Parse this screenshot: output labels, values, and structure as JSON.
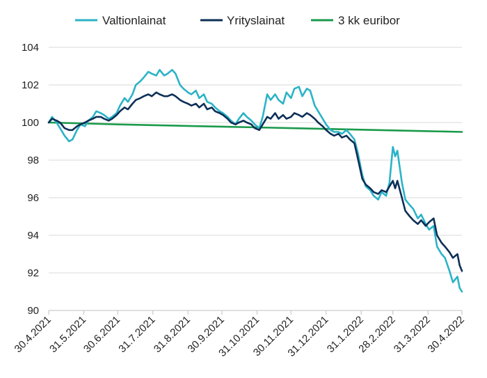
{
  "chart_data": {
    "type": "line",
    "title": "",
    "xlabel": "",
    "ylabel": "",
    "ylim": [
      90,
      104
    ],
    "yticks": [
      "90",
      "92",
      "94",
      "96",
      "98",
      "100",
      "102",
      "104"
    ],
    "xticks": [
      "30.4.2021",
      "31.5.2021",
      "30.6.2021",
      "31.7.2021",
      "31.8.2021",
      "30.9.2021",
      "31.10.2021",
      "30.11.2021",
      "31.12.2021",
      "31.1.2022",
      "28.2.2022",
      "31.3.2022",
      "30.4.2022"
    ],
    "grid": "horizontal",
    "legend_position": "top",
    "series": [
      {
        "name": "Valtionlainat",
        "color": "#2bb3c7",
        "points": [
          [
            "30.4.2021",
            100.0
          ],
          [
            "3.5.2021",
            100.3
          ],
          [
            "7.5.2021",
            100.0
          ],
          [
            "10.5.2021",
            99.7
          ],
          [
            "14.5.2021",
            99.3
          ],
          [
            "18.5.2021",
            99.0
          ],
          [
            "21.5.2021",
            99.1
          ],
          [
            "25.5.2021",
            99.6
          ],
          [
            "28.5.2021",
            99.9
          ],
          [
            "1.6.2021",
            99.8
          ],
          [
            "4.6.2021",
            100.1
          ],
          [
            "8.6.2021",
            100.3
          ],
          [
            "11.6.2021",
            100.6
          ],
          [
            "15.6.2021",
            100.5
          ],
          [
            "18.6.2021",
            100.4
          ],
          [
            "22.6.2021",
            100.2
          ],
          [
            "25.6.2021",
            100.3
          ],
          [
            "29.6.2021",
            100.5
          ],
          [
            "2.7.2021",
            100.9
          ],
          [
            "6.7.2021",
            101.3
          ],
          [
            "9.7.2021",
            101.1
          ],
          [
            "13.7.2021",
            101.5
          ],
          [
            "16.7.2021",
            102.0
          ],
          [
            "20.7.2021",
            102.2
          ],
          [
            "23.7.2021",
            102.4
          ],
          [
            "27.7.2021",
            102.7
          ],
          [
            "30.7.2021",
            102.6
          ],
          [
            "3.8.2021",
            102.5
          ],
          [
            "6.8.2021",
            102.8
          ],
          [
            "10.8.2021",
            102.5
          ],
          [
            "13.8.2021",
            102.6
          ],
          [
            "17.8.2021",
            102.8
          ],
          [
            "20.8.2021",
            102.6
          ],
          [
            "24.8.2021",
            102.0
          ],
          [
            "27.8.2021",
            101.8
          ],
          [
            "31.8.2021",
            101.6
          ],
          [
            "3.9.2021",
            101.5
          ],
          [
            "7.9.2021",
            101.7
          ],
          [
            "10.9.2021",
            101.3
          ],
          [
            "14.9.2021",
            101.5
          ],
          [
            "17.9.2021",
            101.1
          ],
          [
            "21.9.2021",
            101.0
          ],
          [
            "24.9.2021",
            100.8
          ],
          [
            "28.9.2021",
            100.6
          ],
          [
            "1.10.2021",
            100.5
          ],
          [
            "5.10.2021",
            100.3
          ],
          [
            "8.10.2021",
            100.1
          ],
          [
            "12.10.2021",
            99.9
          ],
          [
            "15.10.2021",
            100.2
          ],
          [
            "19.10.2021",
            100.5
          ],
          [
            "22.10.2021",
            100.3
          ],
          [
            "26.10.2021",
            100.1
          ],
          [
            "29.10.2021",
            99.9
          ],
          [
            "2.11.2021",
            99.7
          ],
          [
            "5.11.2021",
            100.3
          ],
          [
            "9.11.2021",
            101.5
          ],
          [
            "12.11.2021",
            101.2
          ],
          [
            "16.11.2021",
            101.5
          ],
          [
            "19.11.2021",
            101.2
          ],
          [
            "23.11.2021",
            101.0
          ],
          [
            "26.11.2021",
            101.6
          ],
          [
            "30.11.2021",
            101.3
          ],
          [
            "3.12.2021",
            101.8
          ],
          [
            "7.12.2021",
            101.9
          ],
          [
            "10.12.2021",
            101.4
          ],
          [
            "14.12.2021",
            101.8
          ],
          [
            "17.12.2021",
            101.7
          ],
          [
            "21.12.2021",
            100.9
          ],
          [
            "24.12.2021",
            100.6
          ],
          [
            "28.12.2021",
            100.2
          ],
          [
            "31.12.2021",
            99.9
          ],
          [
            "4.1.2022",
            99.6
          ],
          [
            "7.1.2022",
            99.5
          ],
          [
            "11.1.2022",
            99.5
          ],
          [
            "14.1.2022",
            99.4
          ],
          [
            "18.1.2022",
            99.6
          ],
          [
            "21.1.2022",
            99.4
          ],
          [
            "25.1.2022",
            99.1
          ],
          [
            "28.1.2022",
            98.4
          ],
          [
            "1.2.2022",
            97.2
          ],
          [
            "4.2.2022",
            96.6
          ],
          [
            "8.2.2022",
            96.4
          ],
          [
            "11.2.2022",
            96.1
          ],
          [
            "15.2.2022",
            95.9
          ],
          [
            "18.2.2022",
            96.3
          ],
          [
            "22.2.2022",
            96.1
          ],
          [
            "25.2.2022",
            96.8
          ],
          [
            "28.2.2022",
            98.7
          ],
          [
            "2.3.2022",
            98.2
          ],
          [
            "4.3.2022",
            98.5
          ],
          [
            "8.3.2022",
            96.8
          ],
          [
            "11.3.2022",
            95.9
          ],
          [
            "15.3.2022",
            95.6
          ],
          [
            "18.3.2022",
            95.4
          ],
          [
            "22.3.2022",
            94.9
          ],
          [
            "25.3.2022",
            95.1
          ],
          [
            "29.3.2022",
            94.6
          ],
          [
            "1.4.2022",
            94.3
          ],
          [
            "5.4.2022",
            94.5
          ],
          [
            "8.4.2022",
            93.4
          ],
          [
            "12.4.2022",
            93.0
          ],
          [
            "15.4.2022",
            92.8
          ],
          [
            "19.4.2022",
            92.1
          ],
          [
            "22.4.2022",
            91.5
          ],
          [
            "26.4.2022",
            91.8
          ],
          [
            "28.4.2022",
            91.2
          ],
          [
            "30.4.2022",
            91.0
          ]
        ]
      },
      {
        "name": "Yrityslainat",
        "color": "#0d2f57",
        "points": [
          [
            "30.4.2021",
            100.0
          ],
          [
            "3.5.2021",
            100.2
          ],
          [
            "7.5.2021",
            100.1
          ],
          [
            "10.5.2021",
            100.0
          ],
          [
            "14.5.2021",
            99.7
          ],
          [
            "18.5.2021",
            99.6
          ],
          [
            "21.5.2021",
            99.6
          ],
          [
            "25.5.2021",
            99.8
          ],
          [
            "28.5.2021",
            99.9
          ],
          [
            "1.6.2021",
            100.0
          ],
          [
            "4.6.2021",
            100.1
          ],
          [
            "8.6.2021",
            100.2
          ],
          [
            "11.6.2021",
            100.3
          ],
          [
            "15.6.2021",
            100.3
          ],
          [
            "18.6.2021",
            100.2
          ],
          [
            "22.6.2021",
            100.1
          ],
          [
            "25.6.2021",
            100.2
          ],
          [
            "29.6.2021",
            100.4
          ],
          [
            "2.7.2021",
            100.6
          ],
          [
            "6.7.2021",
            100.8
          ],
          [
            "9.7.2021",
            100.7
          ],
          [
            "13.7.2021",
            101.0
          ],
          [
            "16.7.2021",
            101.2
          ],
          [
            "20.7.2021",
            101.3
          ],
          [
            "23.7.2021",
            101.4
          ],
          [
            "27.7.2021",
            101.5
          ],
          [
            "30.7.2021",
            101.4
          ],
          [
            "3.8.2021",
            101.6
          ],
          [
            "6.8.2021",
            101.5
          ],
          [
            "10.8.2021",
            101.4
          ],
          [
            "13.8.2021",
            101.4
          ],
          [
            "17.8.2021",
            101.5
          ],
          [
            "20.8.2021",
            101.4
          ],
          [
            "24.8.2021",
            101.2
          ],
          [
            "27.8.2021",
            101.1
          ],
          [
            "31.8.2021",
            101.0
          ],
          [
            "3.9.2021",
            100.9
          ],
          [
            "7.9.2021",
            101.0
          ],
          [
            "10.9.2021",
            100.8
          ],
          [
            "14.9.2021",
            101.0
          ],
          [
            "17.9.2021",
            100.7
          ],
          [
            "21.9.2021",
            100.8
          ],
          [
            "24.9.2021",
            100.6
          ],
          [
            "28.9.2021",
            100.5
          ],
          [
            "1.10.2021",
            100.4
          ],
          [
            "5.10.2021",
            100.2
          ],
          [
            "8.10.2021",
            100.0
          ],
          [
            "12.10.2021",
            99.9
          ],
          [
            "15.10.2021",
            100.0
          ],
          [
            "19.10.2021",
            100.1
          ],
          [
            "22.10.2021",
            100.0
          ],
          [
            "26.10.2021",
            99.9
          ],
          [
            "29.10.2021",
            99.7
          ],
          [
            "2.11.2021",
            99.6
          ],
          [
            "5.11.2021",
            99.9
          ],
          [
            "9.11.2021",
            100.3
          ],
          [
            "12.11.2021",
            100.2
          ],
          [
            "16.11.2021",
            100.5
          ],
          [
            "19.11.2021",
            100.2
          ],
          [
            "23.11.2021",
            100.4
          ],
          [
            "26.11.2021",
            100.2
          ],
          [
            "30.11.2021",
            100.3
          ],
          [
            "3.12.2021",
            100.5
          ],
          [
            "7.12.2021",
            100.4
          ],
          [
            "10.12.2021",
            100.3
          ],
          [
            "14.12.2021",
            100.5
          ],
          [
            "17.12.2021",
            100.4
          ],
          [
            "21.12.2021",
            100.2
          ],
          [
            "24.12.2021",
            100.0
          ],
          [
            "28.12.2021",
            99.8
          ],
          [
            "31.12.2021",
            99.6
          ],
          [
            "4.1.2022",
            99.4
          ],
          [
            "7.1.2022",
            99.3
          ],
          [
            "11.1.2022",
            99.4
          ],
          [
            "14.1.2022",
            99.2
          ],
          [
            "18.1.2022",
            99.3
          ],
          [
            "21.1.2022",
            99.1
          ],
          [
            "25.1.2022",
            98.9
          ],
          [
            "28.1.2022",
            98.1
          ],
          [
            "1.2.2022",
            97.0
          ],
          [
            "4.2.2022",
            96.7
          ],
          [
            "8.2.2022",
            96.5
          ],
          [
            "11.2.2022",
            96.3
          ],
          [
            "15.2.2022",
            96.2
          ],
          [
            "18.2.2022",
            96.4
          ],
          [
            "22.2.2022",
            96.3
          ],
          [
            "25.2.2022",
            96.6
          ],
          [
            "28.2.2022",
            96.9
          ],
          [
            "2.3.2022",
            96.5
          ],
          [
            "4.3.2022",
            96.9
          ],
          [
            "8.3.2022",
            96.0
          ],
          [
            "11.3.2022",
            95.3
          ],
          [
            "15.3.2022",
            95.0
          ],
          [
            "18.3.2022",
            94.8
          ],
          [
            "22.3.2022",
            94.6
          ],
          [
            "25.3.2022",
            94.8
          ],
          [
            "29.3.2022",
            94.5
          ],
          [
            "1.4.2022",
            94.7
          ],
          [
            "5.4.2022",
            94.9
          ],
          [
            "8.4.2022",
            94.0
          ],
          [
            "12.4.2022",
            93.6
          ],
          [
            "15.4.2022",
            93.4
          ],
          [
            "19.4.2022",
            93.1
          ],
          [
            "22.4.2022",
            92.8
          ],
          [
            "26.4.2022",
            93.0
          ],
          [
            "28.4.2022",
            92.4
          ],
          [
            "30.4.2022",
            92.1
          ]
        ]
      },
      {
        "name": "3 kk euribor",
        "color": "#1a9a4a",
        "points": [
          [
            "30.4.2021",
            100.0
          ],
          [
            "31.5.2021",
            99.95
          ],
          [
            "30.6.2021",
            99.9
          ],
          [
            "31.7.2021",
            99.86
          ],
          [
            "31.8.2021",
            99.82
          ],
          [
            "30.9.2021",
            99.78
          ],
          [
            "31.10.2021",
            99.74
          ],
          [
            "30.11.2021",
            99.7
          ],
          [
            "31.12.2021",
            99.66
          ],
          [
            "31.1.2022",
            99.62
          ],
          [
            "28.2.2022",
            99.58
          ],
          [
            "31.3.2022",
            99.54
          ],
          [
            "30.4.2022",
            99.5
          ]
        ]
      }
    ]
  }
}
